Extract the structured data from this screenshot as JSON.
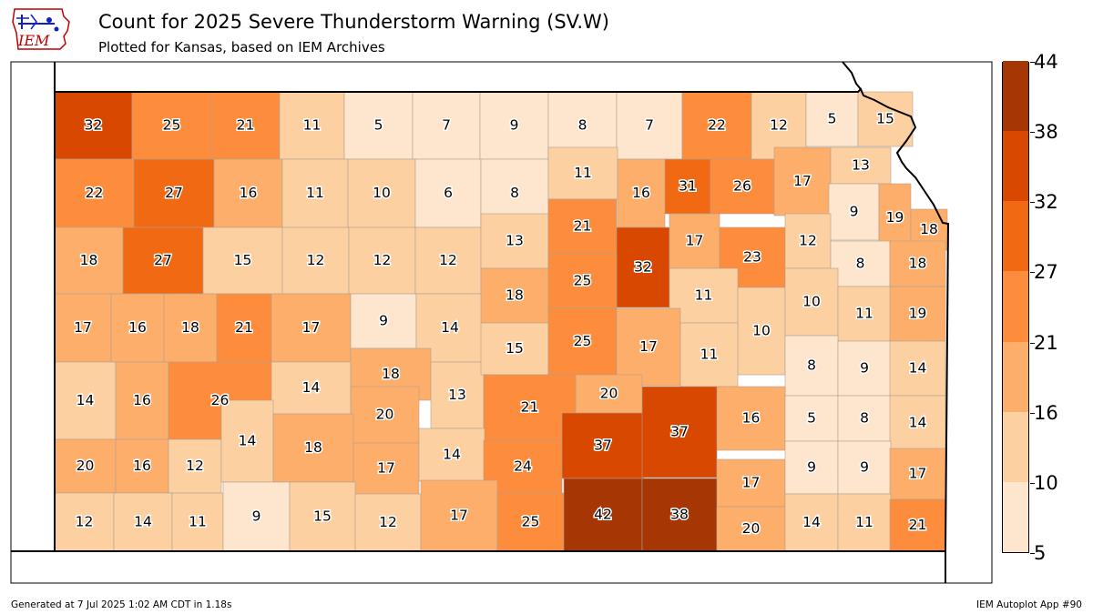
{
  "title": "Count for 2025 Severe Thunderstorm Warning (SV.W)",
  "subtitle": "Plotted for Kansas, based on IEM Archives",
  "footer_left": "Generated at 7 Jul 2025 1:02 AM CDT in 1.18s",
  "footer_right": "IEM Autoplot App #90",
  "logo_text": "IEM",
  "colorbar": {
    "levels": [
      "5",
      "10",
      "16",
      "21",
      "27",
      "32",
      "38",
      "44"
    ],
    "colors": [
      "#fee6ce",
      "#fdd0a2",
      "#fdae6b",
      "#fd8d3c",
      "#f16913",
      "#d94801",
      "#a63603"
    ]
  },
  "chart_data": {
    "type": "choropleth",
    "region": "Kansas counties",
    "counties": [
      {
        "row": 1,
        "values": [
          32,
          25,
          21,
          11,
          5,
          7,
          9,
          8,
          7,
          22,
          12,
          5,
          15
        ]
      },
      {
        "row": 2,
        "values": [
          22,
          27,
          16,
          11,
          10,
          6,
          8,
          11,
          16,
          31,
          26,
          17,
          13,
          9,
          19,
          18
        ]
      },
      {
        "row": 3,
        "values": [
          18,
          27,
          15,
          12,
          12,
          12,
          13,
          21,
          32,
          17,
          23,
          12,
          8,
          18
        ]
      },
      {
        "row": 4,
        "values": [
          17,
          16,
          18,
          21,
          17,
          9,
          14,
          18,
          25,
          11,
          10,
          10,
          11,
          19
        ]
      },
      {
        "row": 5,
        "values": [
          14,
          16,
          26,
          14,
          18,
          13,
          15,
          25,
          17,
          11,
          8,
          9,
          14
        ]
      },
      {
        "row": 6,
        "values": [
          20,
          16,
          12,
          14,
          18,
          20,
          14,
          21,
          20,
          37,
          16,
          5,
          8,
          14
        ]
      },
      {
        "row": 7,
        "values": [
          12,
          14,
          11,
          9,
          15,
          12,
          17,
          25,
          42,
          38,
          17,
          9,
          9,
          17,
          24,
          37,
          20,
          14,
          11,
          21
        ]
      }
    ]
  },
  "labels": [
    {
      "v": "32"
    },
    {
      "v": "25"
    },
    {
      "v": "21"
    },
    {
      "v": "11"
    },
    {
      "v": "5"
    },
    {
      "v": "7"
    },
    {
      "v": "9"
    },
    {
      "v": "8"
    },
    {
      "v": "7"
    },
    {
      "v": "22"
    },
    {
      "v": "12"
    },
    {
      "v": "5"
    },
    {
      "v": "15"
    },
    {
      "v": "22"
    },
    {
      "v": "27"
    },
    {
      "v": "16"
    },
    {
      "v": "11"
    },
    {
      "v": "10"
    },
    {
      "v": "6"
    },
    {
      "v": "8"
    },
    {
      "v": "11"
    },
    {
      "v": "16"
    },
    {
      "v": "31"
    },
    {
      "v": "26"
    },
    {
      "v": "17"
    },
    {
      "v": "13"
    },
    {
      "v": "9"
    },
    {
      "v": "19"
    },
    {
      "v": "18"
    },
    {
      "v": "18"
    },
    {
      "v": "27"
    },
    {
      "v": "15"
    },
    {
      "v": "12"
    },
    {
      "v": "12"
    },
    {
      "v": "12"
    },
    {
      "v": "13"
    },
    {
      "v": "21"
    },
    {
      "v": "32"
    },
    {
      "v": "17"
    },
    {
      "v": "23"
    },
    {
      "v": "12"
    },
    {
      "v": "8"
    },
    {
      "v": "18"
    },
    {
      "v": "17"
    },
    {
      "v": "16"
    },
    {
      "v": "18"
    },
    {
      "v": "21"
    },
    {
      "v": "17"
    },
    {
      "v": "9"
    },
    {
      "v": "14"
    },
    {
      "v": "18"
    },
    {
      "v": "25"
    },
    {
      "v": "11"
    },
    {
      "v": "10"
    },
    {
      "v": "10"
    },
    {
      "v": "11"
    },
    {
      "v": "19"
    },
    {
      "v": "14"
    },
    {
      "v": "16"
    },
    {
      "v": "26"
    },
    {
      "v": "14"
    },
    {
      "v": "18"
    },
    {
      "v": "13"
    },
    {
      "v": "15"
    },
    {
      "v": "25"
    },
    {
      "v": "17"
    },
    {
      "v": "11"
    },
    {
      "v": "8"
    },
    {
      "v": "9"
    },
    {
      "v": "14"
    },
    {
      "v": "20"
    },
    {
      "v": "20"
    },
    {
      "v": "21"
    },
    {
      "v": "16"
    },
    {
      "v": "5"
    },
    {
      "v": "8"
    },
    {
      "v": "14"
    },
    {
      "v": "20"
    },
    {
      "v": "16"
    },
    {
      "v": "12"
    },
    {
      "v": "14"
    },
    {
      "v": "18"
    },
    {
      "v": "17"
    },
    {
      "v": "14"
    },
    {
      "v": "24"
    },
    {
      "v": "37"
    },
    {
      "v": "37"
    },
    {
      "v": "17"
    },
    {
      "v": "9"
    },
    {
      "v": "9"
    },
    {
      "v": "17"
    },
    {
      "v": "12"
    },
    {
      "v": "14"
    },
    {
      "v": "11"
    },
    {
      "v": "9"
    },
    {
      "v": "15"
    },
    {
      "v": "12"
    },
    {
      "v": "17"
    },
    {
      "v": "25"
    },
    {
      "v": "42"
    },
    {
      "v": "38"
    },
    {
      "v": "20"
    },
    {
      "v": "14"
    },
    {
      "v": "11"
    },
    {
      "v": "21"
    }
  ]
}
